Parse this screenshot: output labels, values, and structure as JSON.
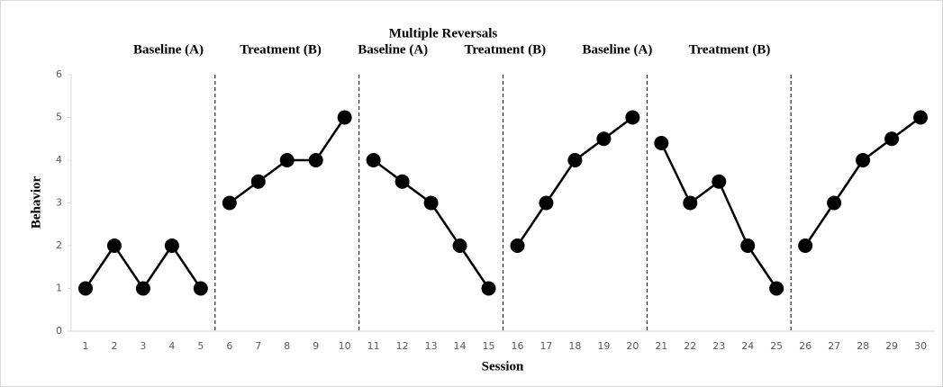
{
  "chart_data": {
    "type": "line",
    "title": "Multiple Reversals",
    "x_label": "Session",
    "y_label": "Behavior",
    "phases": [
      {
        "label": "Baseline (A)",
        "sessions": 5
      },
      {
        "label": "Treatment (B)",
        "sessions": 5
      },
      {
        "label": "Baseline (A)",
        "sessions": 5
      },
      {
        "label": "Treatment (B)",
        "sessions": 5
      },
      {
        "label": "Baseline (A)",
        "sessions": 5
      },
      {
        "label": "Treatment (B)",
        "sessions": 5
      }
    ],
    "categories": [
      "1",
      "2",
      "3",
      "4",
      "5",
      "6",
      "7",
      "8",
      "9",
      "10",
      "11",
      "12",
      "13",
      "14",
      "15",
      "16",
      "17",
      "18",
      "19",
      "20",
      "21",
      "22",
      "23",
      "24",
      "25",
      "26",
      "27",
      "28",
      "29",
      "30"
    ],
    "values": [
      1,
      2,
      1,
      2,
      1,
      3,
      3.5,
      4,
      4,
      5,
      4,
      3.5,
      3,
      2,
      1,
      2,
      3,
      4,
      4.5,
      5,
      4.4,
      3,
      3.5,
      2,
      1,
      2,
      3,
      4,
      4.5,
      5
    ],
    "color": "#000000",
    "ylim": [
      0,
      6
    ],
    "yticks": [
      0,
      1,
      2,
      3,
      4,
      5,
      6
    ]
  }
}
